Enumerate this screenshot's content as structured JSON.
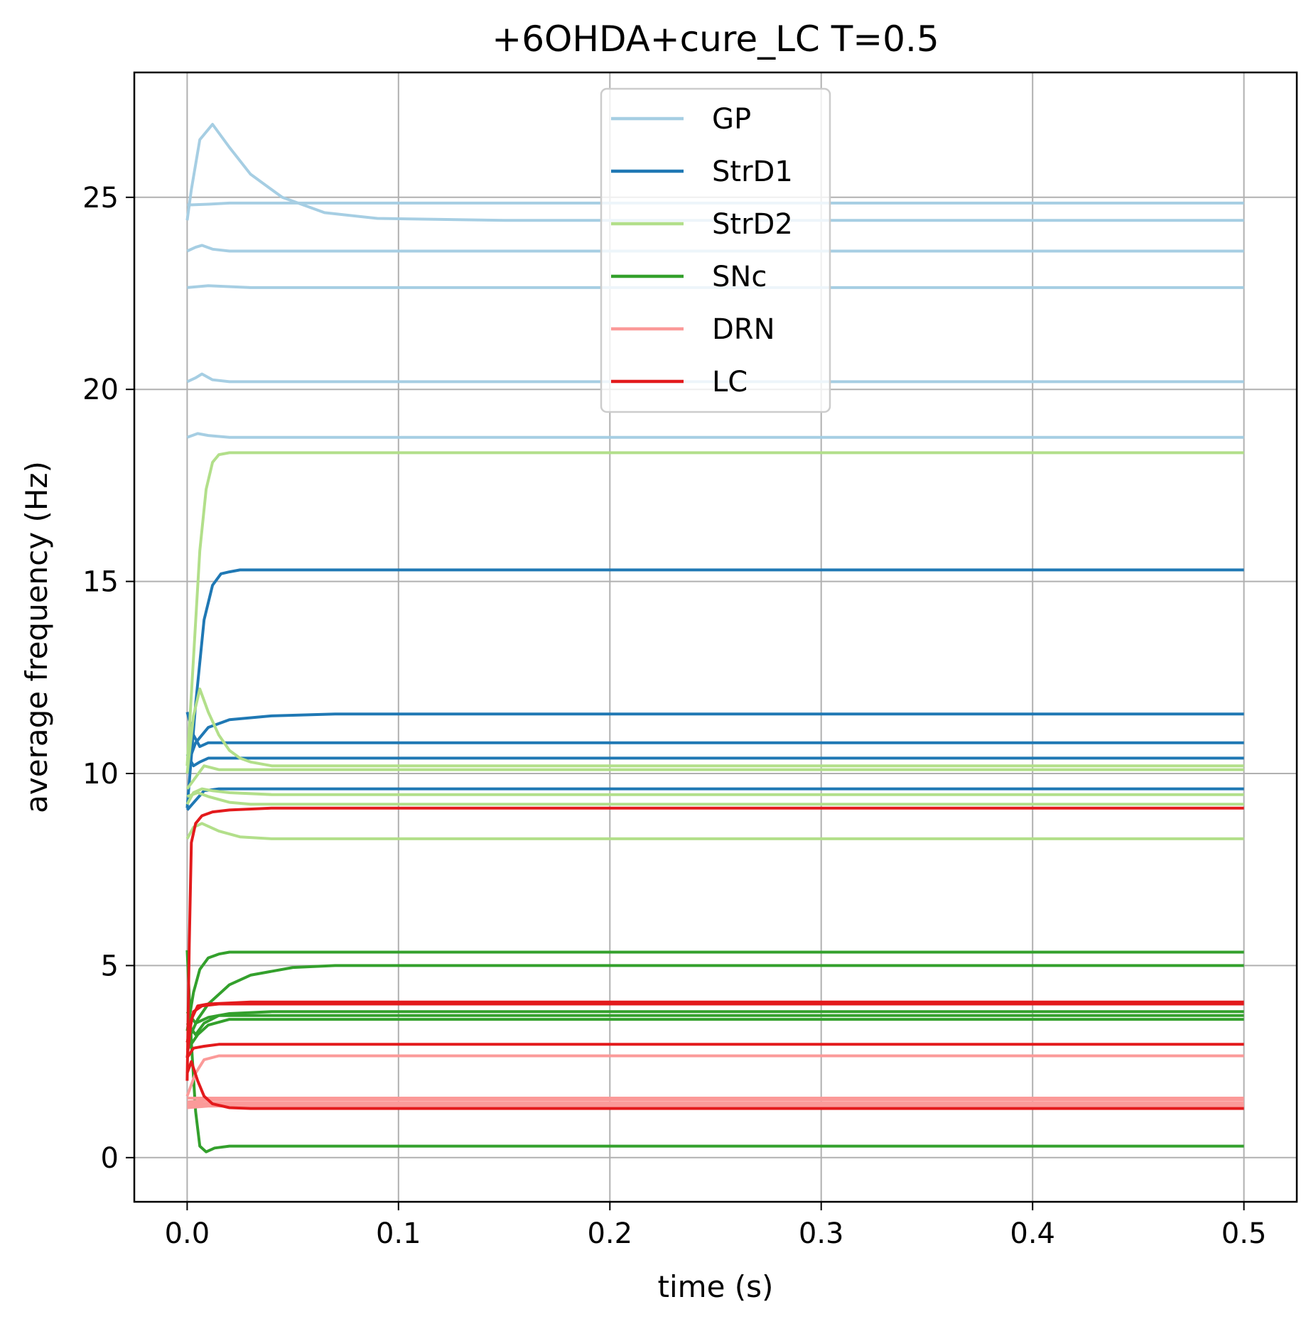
{
  "chart_data": {
    "type": "line",
    "title": "+6OHDA+cure_LC T=0.5",
    "xlabel": "time (s)",
    "ylabel": "average frequency (Hz)",
    "xlim": [
      -0.025,
      0.525
    ],
    "ylim": [
      -1.15,
      28.25
    ],
    "x_ticks": [
      0.0,
      0.1,
      0.2,
      0.3,
      0.4,
      0.5
    ],
    "x_tick_labels": [
      "0.0",
      "0.1",
      "0.2",
      "0.3",
      "0.4",
      "0.5"
    ],
    "y_ticks": [
      0,
      5,
      10,
      15,
      20,
      25
    ],
    "y_tick_labels": [
      "0",
      "5",
      "10",
      "15",
      "20",
      "25"
    ],
    "grid": true,
    "legend_position": "top-center",
    "populations": [
      {
        "name": "GP",
        "color": "#a6cee3"
      },
      {
        "name": "StrD1",
        "color": "#1f78b4"
      },
      {
        "name": "StrD2",
        "color": "#b2df8a"
      },
      {
        "name": "SNc",
        "color": "#33a02c"
      },
      {
        "name": "DRN",
        "color": "#fb9a99"
      },
      {
        "name": "LC",
        "color": "#e31a1c"
      }
    ],
    "series": [
      {
        "population": "GP",
        "x": [
          0,
          0.002,
          0.006,
          0.012,
          0.02,
          0.03,
          0.045,
          0.065,
          0.09,
          0.15,
          0.5
        ],
        "y": [
          24.4,
          25.2,
          26.5,
          26.9,
          26.3,
          25.6,
          25.0,
          24.6,
          24.45,
          24.4,
          24.4
        ]
      },
      {
        "population": "GP",
        "x": [
          0,
          0.01,
          0.02,
          0.5
        ],
        "y": [
          24.8,
          24.82,
          24.85,
          24.85
        ]
      },
      {
        "population": "GP",
        "x": [
          0,
          0.004,
          0.007,
          0.012,
          0.02,
          0.04,
          0.5
        ],
        "y": [
          23.6,
          23.7,
          23.75,
          23.65,
          23.6,
          23.6,
          23.6
        ]
      },
      {
        "population": "GP",
        "x": [
          0,
          0.01,
          0.03,
          0.5
        ],
        "y": [
          22.65,
          22.7,
          22.65,
          22.65
        ]
      },
      {
        "population": "GP",
        "x": [
          0,
          0.004,
          0.007,
          0.012,
          0.02,
          0.04,
          0.5
        ],
        "y": [
          20.2,
          20.3,
          20.4,
          20.25,
          20.2,
          20.2,
          20.2
        ]
      },
      {
        "population": "GP",
        "x": [
          0,
          0.005,
          0.01,
          0.02,
          0.5
        ],
        "y": [
          18.75,
          18.85,
          18.8,
          18.75,
          18.75
        ]
      },
      {
        "population": "StrD1",
        "x": [
          0,
          0.004,
          0.008,
          0.012,
          0.016,
          0.02,
          0.025,
          0.5
        ],
        "y": [
          9.1,
          11.8,
          14.0,
          14.9,
          15.2,
          15.25,
          15.3,
          15.3
        ]
      },
      {
        "population": "StrD1",
        "x": [
          0,
          0.004,
          0.01,
          0.02,
          0.04,
          0.07,
          0.5
        ],
        "y": [
          10.2,
          10.8,
          11.2,
          11.4,
          11.5,
          11.55,
          11.55
        ]
      },
      {
        "population": "StrD1",
        "x": [
          0,
          0.003,
          0.006,
          0.01,
          0.02,
          0.5
        ],
        "y": [
          11.6,
          11.0,
          10.7,
          10.8,
          10.8,
          10.8
        ]
      },
      {
        "population": "StrD1",
        "x": [
          0,
          0.003,
          0.006,
          0.01,
          0.02,
          0.5
        ],
        "y": [
          10.5,
          10.2,
          10.3,
          10.4,
          10.4,
          10.4
        ]
      },
      {
        "population": "StrD1",
        "x": [
          0,
          0.004,
          0.008,
          0.015,
          0.5
        ],
        "y": [
          9.05,
          9.3,
          9.55,
          9.6,
          9.6
        ]
      },
      {
        "population": "StrD2",
        "x": [
          0,
          0.003,
          0.006,
          0.009,
          0.012,
          0.015,
          0.02,
          0.03,
          0.5
        ],
        "y": [
          10.2,
          13.0,
          15.8,
          17.4,
          18.1,
          18.3,
          18.35,
          18.35,
          18.35
        ]
      },
      {
        "population": "StrD2",
        "x": [
          0,
          0.003,
          0.006,
          0.01,
          0.015,
          0.02,
          0.025,
          0.03,
          0.04,
          0.5
        ],
        "y": [
          10.0,
          11.5,
          12.2,
          11.6,
          11.0,
          10.6,
          10.4,
          10.3,
          10.2,
          10.2
        ]
      },
      {
        "population": "StrD2",
        "x": [
          0,
          0.004,
          0.008,
          0.015,
          0.025,
          0.04,
          0.5
        ],
        "y": [
          9.6,
          9.9,
          10.2,
          10.1,
          10.1,
          10.1,
          10.1
        ]
      },
      {
        "population": "StrD2",
        "x": [
          0,
          0.003,
          0.007,
          0.012,
          0.02,
          0.04,
          0.07,
          0.5
        ],
        "y": [
          9.2,
          9.5,
          9.6,
          9.55,
          9.5,
          9.45,
          9.45,
          9.45
        ]
      },
      {
        "population": "StrD2",
        "x": [
          0,
          0.005,
          0.01,
          0.02,
          0.03,
          0.05,
          0.5
        ],
        "y": [
          9.4,
          9.5,
          9.4,
          9.25,
          9.2,
          9.2,
          9.2
        ]
      },
      {
        "population": "StrD2",
        "x": [
          0,
          0.003,
          0.007,
          0.015,
          0.025,
          0.04,
          0.5
        ],
        "y": [
          8.3,
          8.6,
          8.7,
          8.5,
          8.35,
          8.3,
          8.3
        ]
      },
      {
        "population": "SNc",
        "x": [
          0,
          0.003,
          0.006,
          0.01,
          0.015,
          0.02,
          0.03,
          0.5
        ],
        "y": [
          3.3,
          4.3,
          4.9,
          5.2,
          5.3,
          5.35,
          5.35,
          5.35
        ]
      },
      {
        "population": "SNc",
        "x": [
          0,
          0.005,
          0.01,
          0.02,
          0.03,
          0.05,
          0.07,
          0.5
        ],
        "y": [
          3.0,
          3.6,
          4.0,
          4.5,
          4.75,
          4.95,
          5.0,
          5.0
        ]
      },
      {
        "population": "SNc",
        "x": [
          0,
          0.004,
          0.01,
          0.02,
          0.04,
          0.06,
          0.5
        ],
        "y": [
          3.8,
          3.5,
          3.65,
          3.75,
          3.8,
          3.8,
          3.8
        ]
      },
      {
        "population": "SNc",
        "x": [
          0,
          0.005,
          0.01,
          0.02,
          0.04,
          0.5
        ],
        "y": [
          2.8,
          3.2,
          3.45,
          3.6,
          3.6,
          3.6
        ]
      },
      {
        "population": "SNc",
        "x": [
          0,
          0.004,
          0.008,
          0.015,
          0.03,
          0.5
        ],
        "y": [
          3.5,
          3.2,
          3.5,
          3.7,
          3.7,
          3.7
        ]
      },
      {
        "population": "SNc",
        "x": [
          0,
          0.002,
          0.004,
          0.006,
          0.009,
          0.013,
          0.02,
          0.03,
          0.5
        ],
        "y": [
          5.4,
          3.0,
          1.2,
          0.3,
          0.15,
          0.25,
          0.3,
          0.3,
          0.3
        ]
      },
      {
        "population": "DRN",
        "x": [
          0,
          0.004,
          0.008,
          0.015,
          0.03,
          0.5
        ],
        "y": [
          1.6,
          2.2,
          2.55,
          2.65,
          2.65,
          2.65
        ]
      },
      {
        "population": "DRN",
        "x": [
          0,
          0.01,
          0.5
        ],
        "y": [
          1.55,
          1.55,
          1.55
        ]
      },
      {
        "population": "DRN",
        "x": [
          0,
          0.01,
          0.5
        ],
        "y": [
          1.45,
          1.5,
          1.5
        ]
      },
      {
        "population": "DRN",
        "x": [
          0,
          0.01,
          0.5
        ],
        "y": [
          1.4,
          1.42,
          1.42
        ]
      },
      {
        "population": "DRN",
        "x": [
          0,
          0.01,
          0.5
        ],
        "y": [
          1.35,
          1.38,
          1.38
        ]
      },
      {
        "population": "DRN",
        "x": [
          0,
          0.01,
          0.5
        ],
        "y": [
          1.3,
          1.34,
          1.34
        ]
      },
      {
        "population": "LC",
        "x": [
          0,
          0.001,
          0.002,
          0.004,
          0.007,
          0.012,
          0.02,
          0.04,
          0.5
        ],
        "y": [
          2.0,
          5.5,
          8.2,
          8.7,
          8.9,
          9.0,
          9.05,
          9.1,
          9.1
        ]
      },
      {
        "population": "LC",
        "x": [
          0,
          0.002,
          0.005,
          0.01,
          0.03,
          0.5
        ],
        "y": [
          2.6,
          3.6,
          3.95,
          4.0,
          4.05,
          4.05
        ]
      },
      {
        "population": "LC",
        "x": [
          0,
          0.003,
          0.007,
          0.015,
          0.5
        ],
        "y": [
          3.0,
          3.8,
          3.95,
          4.0,
          4.0
        ]
      },
      {
        "population": "LC",
        "x": [
          0,
          0.003,
          0.008,
          0.015,
          0.5
        ],
        "y": [
          2.6,
          2.85,
          2.9,
          2.95,
          2.95
        ]
      },
      {
        "population": "LC",
        "x": [
          0,
          0.002,
          0.005,
          0.008,
          0.012,
          0.02,
          0.03,
          0.5
        ],
        "y": [
          2.2,
          2.5,
          2.0,
          1.6,
          1.4,
          1.3,
          1.28,
          1.28
        ]
      }
    ]
  }
}
